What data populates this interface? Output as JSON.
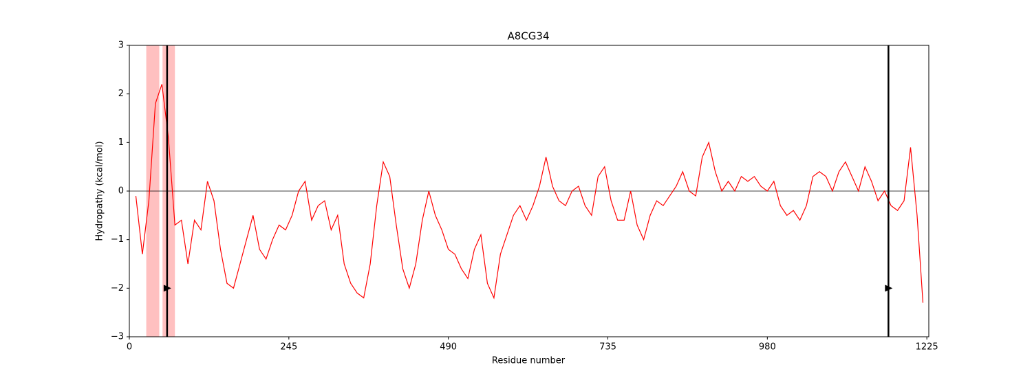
{
  "chart_data": {
    "type": "line",
    "title": "A8CG34",
    "x_label": "Residue number",
    "y_label": "Hydropathy (kcal/mol)",
    "xlim": [
      0,
      1228
    ],
    "ylim": [
      -3,
      3
    ],
    "xticks": [
      0,
      245,
      490,
      735,
      980,
      1225
    ],
    "yticks": [
      {
        "value": -3,
        "label": "−3"
      },
      {
        "value": -2,
        "label": "−2"
      },
      {
        "value": -1,
        "label": "−1"
      },
      0,
      1,
      2,
      3
    ],
    "hline": 0,
    "regions": [
      [
        26,
        46
      ],
      [
        51,
        70
      ]
    ],
    "region_color": "#ffc0c0",
    "markers": [
      {
        "x": 58,
        "y": -2
      },
      {
        "x": 1166,
        "y": -2
      }
    ],
    "marker_color": "#000000",
    "series": [
      {
        "color": "#ff0000",
        "x": [
          10,
          20,
          30,
          40,
          50,
          60,
          70,
          80,
          90,
          100,
          110,
          120,
          130,
          140,
          150,
          160,
          170,
          180,
          190,
          200,
          210,
          220,
          230,
          240,
          250,
          260,
          270,
          280,
          290,
          300,
          310,
          320,
          330,
          340,
          350,
          360,
          370,
          380,
          390,
          400,
          410,
          420,
          430,
          440,
          450,
          460,
          470,
          480,
          490,
          500,
          510,
          520,
          530,
          540,
          550,
          560,
          570,
          580,
          590,
          600,
          610,
          620,
          630,
          640,
          650,
          660,
          670,
          680,
          690,
          700,
          710,
          720,
          730,
          740,
          750,
          760,
          770,
          780,
          790,
          800,
          810,
          820,
          830,
          840,
          850,
          860,
          870,
          880,
          890,
          900,
          910,
          920,
          930,
          940,
          950,
          960,
          970,
          980,
          990,
          1000,
          1010,
          1020,
          1030,
          1040,
          1050,
          1060,
          1070,
          1080,
          1090,
          1100,
          1110,
          1120,
          1130,
          1140,
          1150,
          1160,
          1170,
          1180,
          1190,
          1200,
          1210,
          1219
        ],
        "values": [
          -0.1,
          -1.3,
          -0.2,
          1.8,
          2.2,
          1.1,
          -0.7,
          -0.6,
          -1.5,
          -0.6,
          -0.8,
          0.2,
          -0.2,
          -1.2,
          -1.9,
          -2.0,
          -1.5,
          -1.0,
          -0.5,
          -1.2,
          -1.4,
          -1.0,
          -0.7,
          -0.8,
          -0.5,
          0.0,
          0.2,
          -0.6,
          -0.3,
          -0.2,
          -0.8,
          -0.5,
          -1.5,
          -1.9,
          -2.1,
          -2.2,
          -1.5,
          -0.3,
          0.6,
          0.3,
          -0.7,
          -1.6,
          -2.0,
          -1.5,
          -0.6,
          0.0,
          -0.5,
          -0.8,
          -1.2,
          -1.3,
          -1.6,
          -1.8,
          -1.2,
          -0.9,
          -1.9,
          -2.2,
          -1.3,
          -0.9,
          -0.5,
          -0.3,
          -0.6,
          -0.3,
          0.1,
          0.7,
          0.1,
          -0.2,
          -0.3,
          0.0,
          0.1,
          -0.3,
          -0.5,
          0.3,
          0.5,
          -0.2,
          -0.6,
          -0.6,
          0.0,
          -0.7,
          -1.0,
          -0.5,
          -0.2,
          -0.3,
          -0.1,
          0.1,
          0.4,
          0.0,
          -0.1,
          0.7,
          1.0,
          0.4,
          0.0,
          0.2,
          0.0,
          0.3,
          0.2,
          0.3,
          0.1,
          0.0,
          0.2,
          -0.3,
          -0.5,
          -0.4,
          -0.6,
          -0.3,
          0.3,
          0.4,
          0.3,
          0.0,
          0.4,
          0.6,
          0.3,
          0.0,
          0.5,
          0.2,
          -0.2,
          0.0,
          -0.3,
          -0.4,
          -0.2,
          0.9,
          -0.5,
          -2.3
        ]
      }
    ]
  }
}
